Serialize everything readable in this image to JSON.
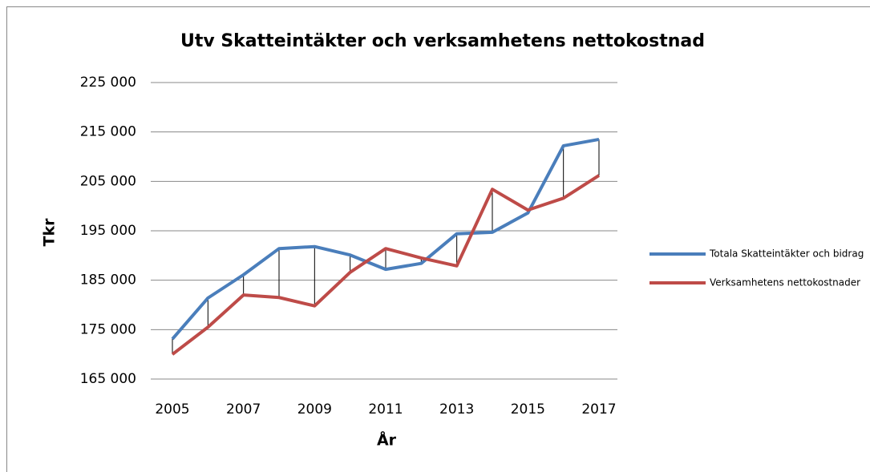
{
  "chart_data": {
    "type": "line",
    "title": "Utv Skatteintäkter och verksamhetens nettokostnad",
    "x_label": "År",
    "y_label": "Tkr",
    "x": [
      2005,
      2006,
      2007,
      2008,
      2009,
      2010,
      2011,
      2012,
      2013,
      2014,
      2015,
      2016,
      2017
    ],
    "xlim": [
      2005,
      2017
    ],
    "xticks": [
      2005,
      2007,
      2009,
      2011,
      2013,
      2015,
      2017
    ],
    "ylim": [
      165000,
      225000
    ],
    "yticks": [
      {
        "value": 165000,
        "label": "165 000"
      },
      {
        "value": 175000,
        "label": "175 000"
      },
      {
        "value": 185000,
        "label": "185 000"
      },
      {
        "value": 195000,
        "label": "195 000"
      },
      {
        "value": 205000,
        "label": "205 000"
      },
      {
        "value": 215000,
        "label": "215 000"
      },
      {
        "value": 225000,
        "label": "225 000"
      }
    ],
    "grid": true,
    "legend": "right",
    "series": [
      {
        "name": "Totala Skatteintäkter och bidrag",
        "color": "#4a7ebb",
        "values": [
          173100,
          181400,
          186100,
          191400,
          191800,
          190100,
          187200,
          188400,
          194400,
          194700,
          198600,
          212200,
          213500
        ]
      },
      {
        "name": "Verksamhetens nettokostnader",
        "color": "#be4b48",
        "values": [
          170000,
          175500,
          182000,
          181500,
          179800,
          186600,
          191400,
          189500,
          187900,
          203400,
          199200,
          201600,
          206200
        ]
      }
    ]
  }
}
